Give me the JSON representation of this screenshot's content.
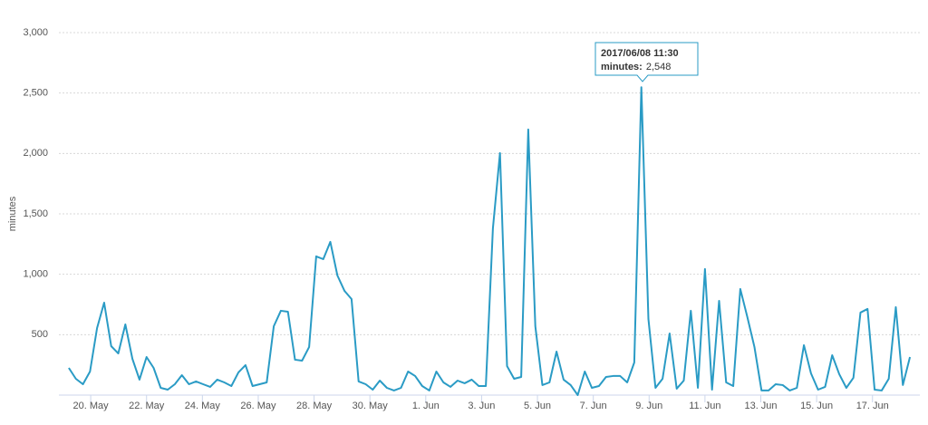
{
  "chart_data": {
    "type": "line",
    "y_label": "minutes",
    "series": [
      {
        "name": "minutes",
        "color": "#2a9bc5",
        "values": [
          225,
          135,
          90,
          195,
          555,
          765,
          405,
          345,
          585,
          300,
          128,
          315,
          225,
          60,
          45,
          90,
          165,
          90,
          113,
          90,
          68,
          128,
          105,
          75,
          188,
          248,
          75,
          90,
          105,
          570,
          698,
          690,
          293,
          285,
          398,
          1148,
          1125,
          1268,
          990,
          863,
          795,
          113,
          90,
          45,
          120,
          60,
          38,
          60,
          195,
          158,
          75,
          38,
          195,
          105,
          68,
          120,
          98,
          128,
          75,
          75,
          1380,
          2003,
          240,
          135,
          150,
          2198,
          570,
          83,
          105,
          360,
          128,
          83,
          0,
          195,
          60,
          75,
          150,
          158,
          158,
          105,
          270,
          2548,
          630,
          60,
          135,
          510,
          53,
          120,
          698,
          60,
          1043,
          45,
          780,
          105,
          75,
          878,
          645,
          398,
          38,
          38,
          90,
          83,
          38,
          60,
          413,
          180,
          45,
          68,
          330,
          173,
          60,
          143,
          683,
          713,
          45,
          38,
          135,
          728,
          83,
          315
        ]
      }
    ],
    "xlim": [
      -1.4,
      120.4
    ],
    "xticks": [
      {
        "value": 3.1,
        "label": "20. May"
      },
      {
        "value": 11,
        "label": "22. May"
      },
      {
        "value": 18.9,
        "label": "24. May"
      },
      {
        "value": 26.8,
        "label": "26. May"
      },
      {
        "value": 34.7,
        "label": "28. May"
      },
      {
        "value": 42.6,
        "label": "30. May"
      },
      {
        "value": 50.5,
        "label": "1. Jun"
      },
      {
        "value": 58.4,
        "label": "3. Jun"
      },
      {
        "value": 66.3,
        "label": "5. Jun"
      },
      {
        "value": 74.2,
        "label": "7. Jun"
      },
      {
        "value": 82.1,
        "label": "9. Jun"
      },
      {
        "value": 90,
        "label": "11. Jun"
      },
      {
        "value": 97.9,
        "label": "13. Jun"
      },
      {
        "value": 105.8,
        "label": "15. Jun"
      },
      {
        "value": 113.7,
        "label": "17. Jun"
      }
    ],
    "ylim": [
      0,
      3000
    ],
    "yticks": [
      500,
      {
        "value": 1000,
        "label": "1,000"
      },
      {
        "value": 1500,
        "label": "1,500"
      },
      {
        "value": 2000,
        "label": "2,000"
      },
      {
        "value": 2500,
        "label": "2,500"
      },
      {
        "value": 3000,
        "label": "3,000"
      }
    ],
    "grid": true,
    "tooltip": {
      "title": "2017/06/08 11:30",
      "label": "minutes:",
      "value": 2548,
      "value_label": "2,548"
    }
  }
}
